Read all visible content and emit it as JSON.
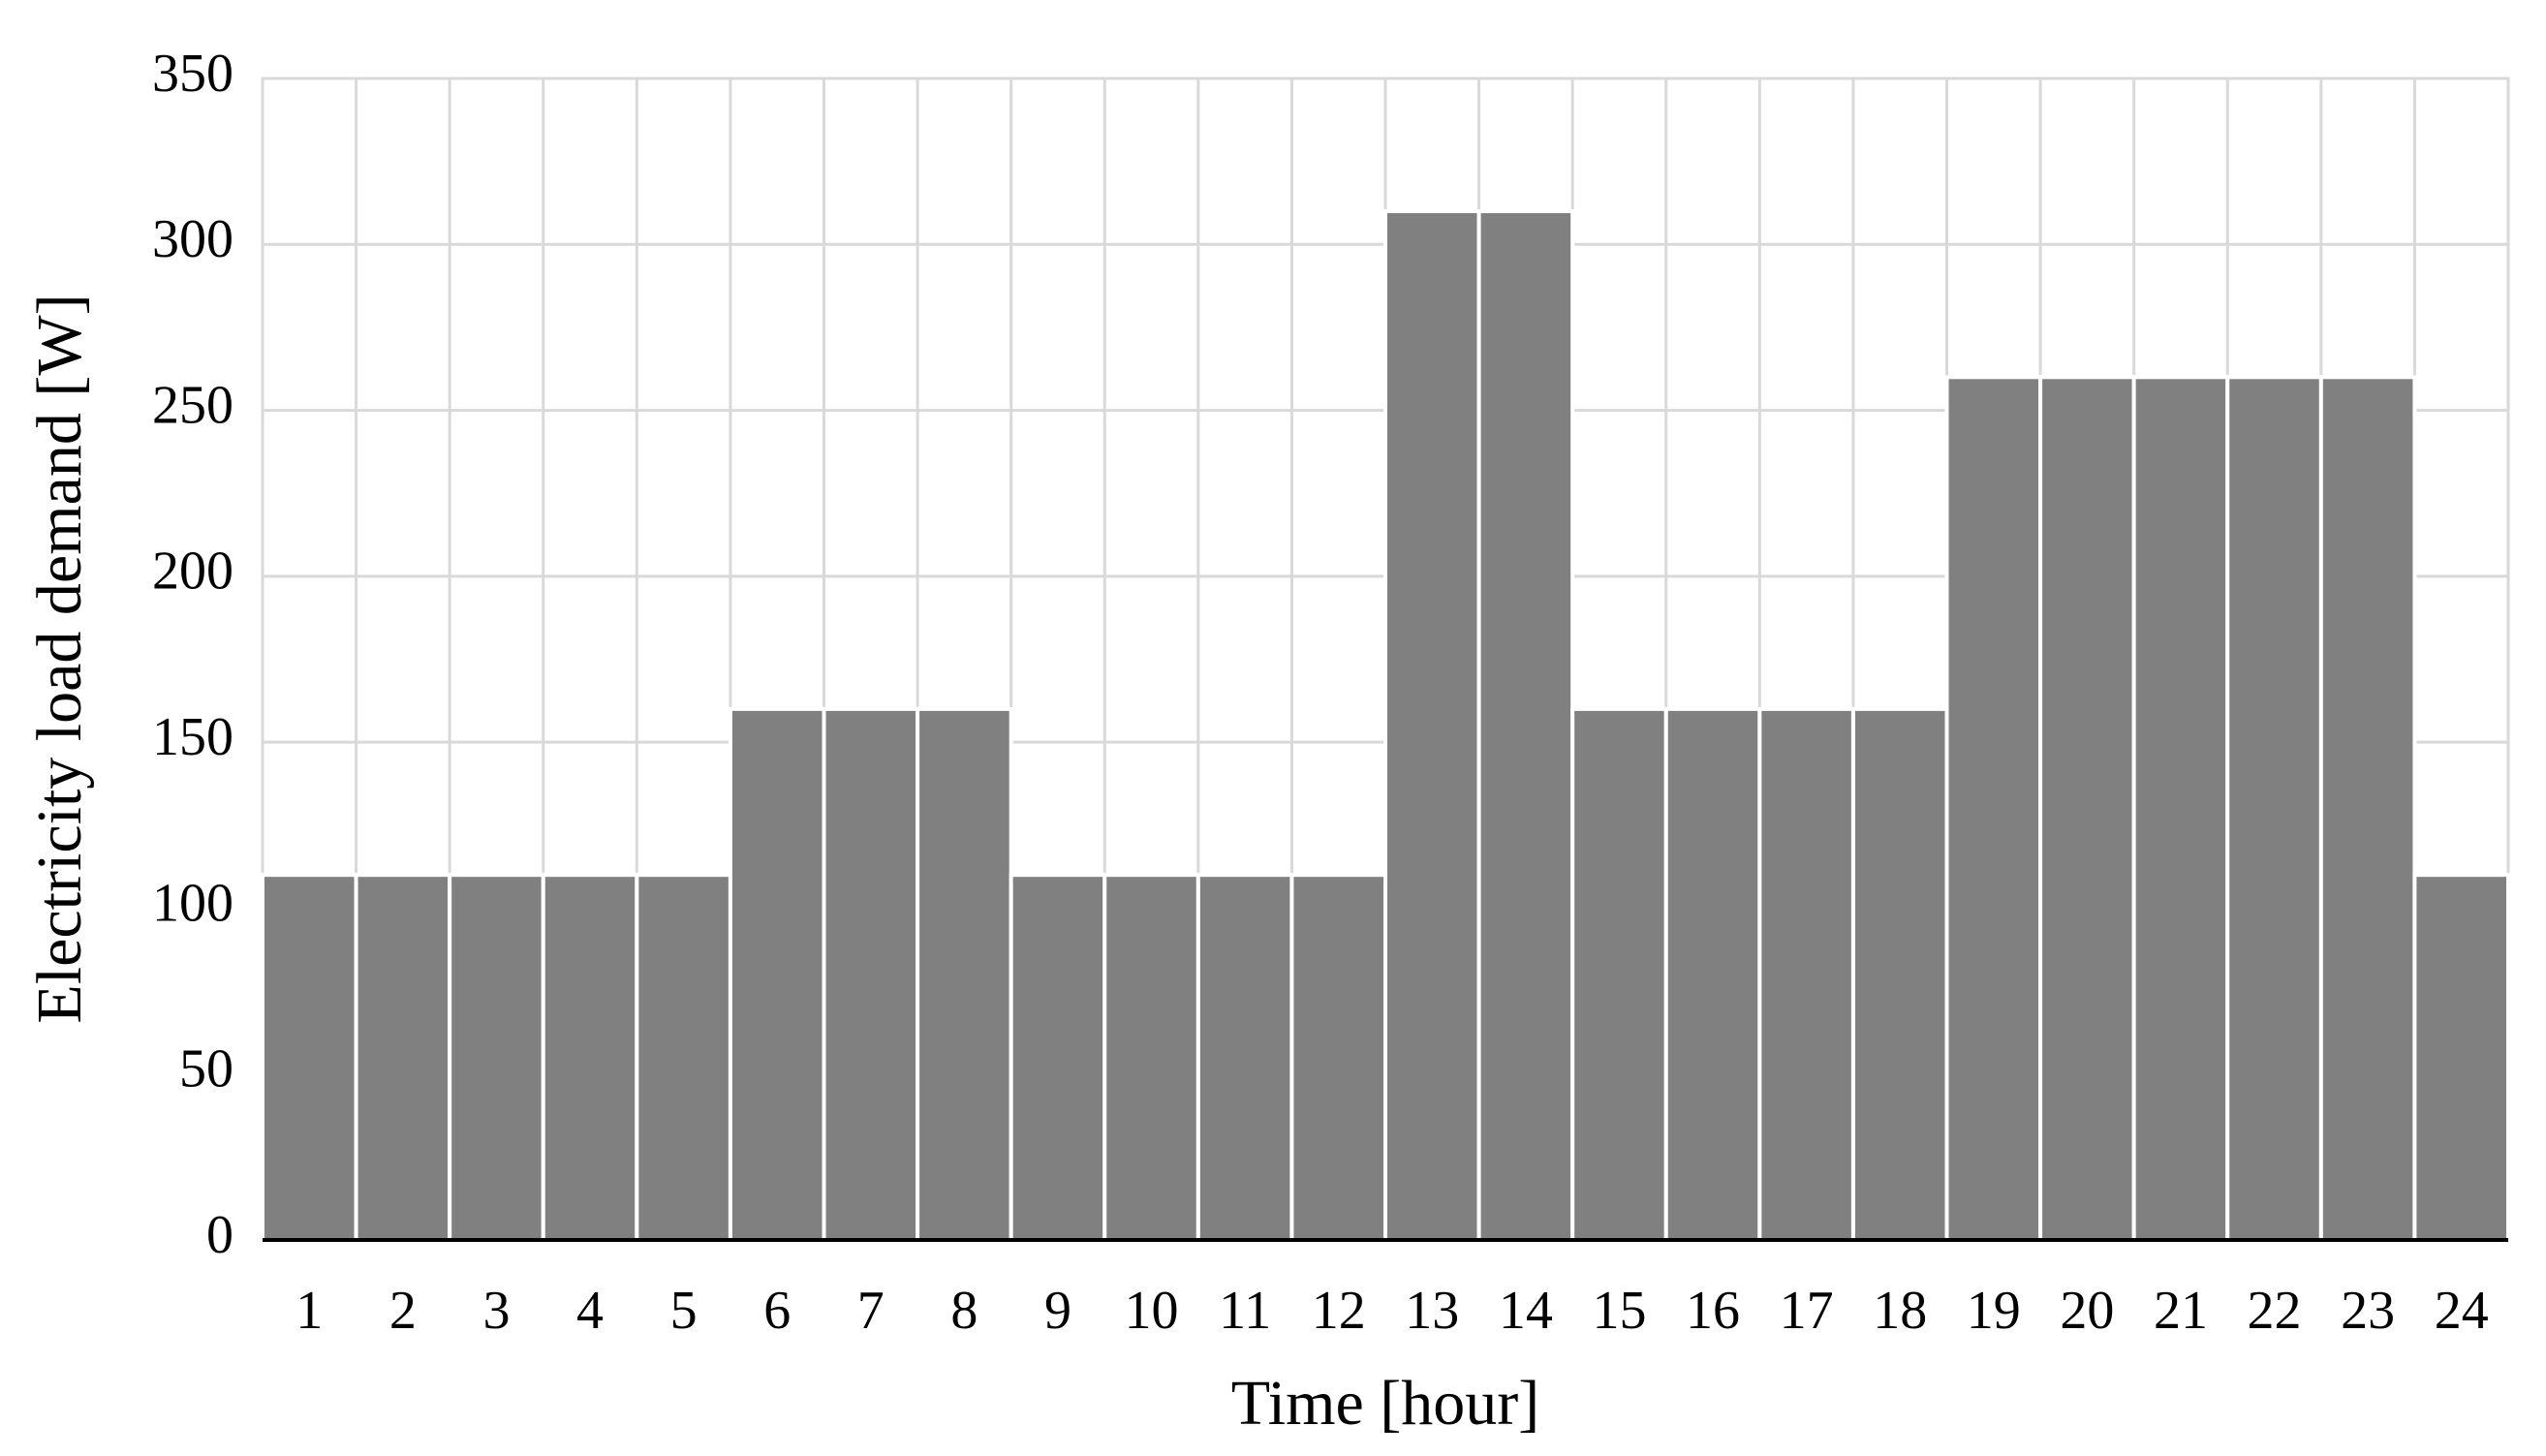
{
  "chart_data": {
    "type": "bar",
    "x_label": "Time [hour]",
    "y_label": "Electricity load demand [W]",
    "categories": [
      "1",
      "2",
      "3",
      "4",
      "5",
      "6",
      "7",
      "8",
      "9",
      "10",
      "11",
      "12",
      "13",
      "14",
      "15",
      "16",
      "17",
      "18",
      "19",
      "20",
      "21",
      "22",
      "23",
      "24"
    ],
    "values": [
      110,
      110,
      110,
      110,
      110,
      160,
      160,
      160,
      110,
      110,
      110,
      110,
      310,
      310,
      160,
      160,
      160,
      160,
      260,
      260,
      260,
      260,
      260,
      110
    ],
    "color": "#808080",
    "ylim": [
      0,
      350
    ],
    "yticks": [
      0,
      50,
      100,
      150,
      200,
      250,
      300,
      350
    ],
    "grid": true
  }
}
